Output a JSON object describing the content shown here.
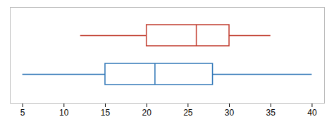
{
  "chart_data": {
    "type": "boxplot",
    "orientation": "horizontal",
    "series": [
      {
        "color": "#c0392b",
        "whisker_low": 12,
        "q1": 20,
        "median": 26,
        "q3": 30,
        "whisker_high": 35
      },
      {
        "color": "#2e75b6",
        "whisker_low": 5,
        "q1": 15,
        "median": 21,
        "q3": 28,
        "whisker_high": 40
      }
    ],
    "xlim": [
      3.5,
      41.5
    ],
    "xticks": [
      5,
      10,
      15,
      20,
      25,
      30,
      35,
      40
    ],
    "grid": false,
    "tick_labels": "x"
  }
}
